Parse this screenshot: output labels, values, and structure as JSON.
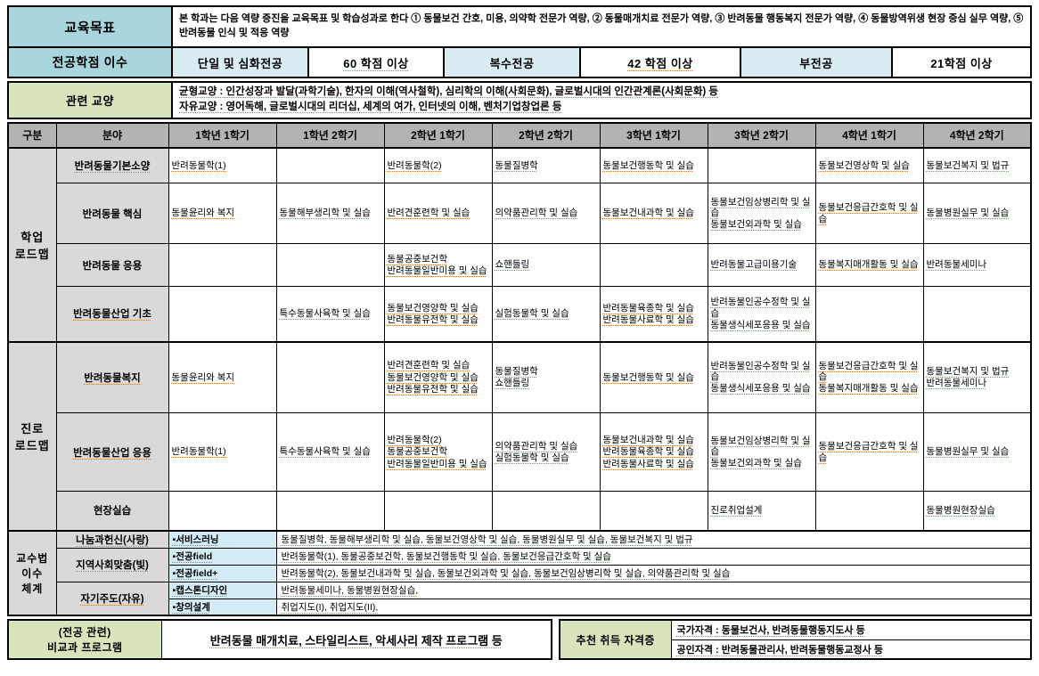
{
  "colors": {
    "header_teal": "#a9d6dc",
    "pale_blue": "#d8ecf2",
    "green": "#d8e4bc",
    "column_header_gray": "#b3b3b3",
    "label_gray": "#d9d9d9",
    "method_blue": "#d3ebf4",
    "spellcheck_squiggle": "#e8741f",
    "border": "#000000"
  },
  "top": {
    "goal_label": "교육목표",
    "goal_text": "본 학과는 다음 역량 증진을 교육목표 및 학습성과로 한다 ① 동물보건 간호, 미용, 의약학 전문가 역량, ② 동물매개치료 전문가 역량, ③ 반려동물 행동복지 전문가 역량, ④ 동물방역위생 현장 중심 실무 역량, ⑤ 반려동물 인식 및 적응 역량",
    "credits_label": "전공학점 이수",
    "credit_items": [
      {
        "label": "단일 및 심화전공",
        "value": "60 학점 이상"
      },
      {
        "label": "복수전공",
        "value": "42 학점 이상"
      },
      {
        "label": "부전공",
        "value": "21학점 이상"
      }
    ]
  },
  "liberal": {
    "label": "관련 교양",
    "line1": "균형교양 : 인간성장과 발달(과학기술), 한자의 이해(역사철학), 심리학의 이해(사회문화), 글로벌시대의 인간관계론(사회문화) 등",
    "line2": "자유교양 : 영어독해, 글로벌시대의 리더십, 세계의 여가, 인터넷의 이해, 벤처기업창업론 등"
  },
  "roadmap": {
    "headers": [
      "구분",
      "분야",
      "1학년 1학기",
      "1학년 2학기",
      "2학년 1학기",
      "2학년 2학기",
      "3학년 1학기",
      "3학년 2학기",
      "4학년 1학기",
      "4학년 2학기"
    ],
    "academic": {
      "label": "학업\n로드맵",
      "rows": [
        {
          "field": "반려동물기본소양",
          "cells": [
            [
              "반려동물학(1)"
            ],
            [],
            [
              "반려동물학(2)"
            ],
            [
              "동물질병학"
            ],
            [
              "동물보건행동학 및 실습"
            ],
            [],
            [
              "동물보건영상학 및 실습"
            ],
            [
              "동물보건복지 및 법규"
            ]
          ]
        },
        {
          "field": "반려동물 핵심",
          "cells": [
            [
              "동물윤리와 복지"
            ],
            [
              "동물해부생리학 및 실습"
            ],
            [
              "반려견훈련학 및 실습"
            ],
            [
              "의약품관리학 및 실습"
            ],
            [
              "동물보건내과학 및 실습"
            ],
            [
              "동물보건임상병리학 및 실습",
              "동물보건외과학 및 실습"
            ],
            [
              "동물보건응급간호학 및 실습"
            ],
            [
              "동물병원실무 및 실습"
            ]
          ]
        },
        {
          "field": "반려동물 응용",
          "cells": [
            [],
            [],
            [
              "동물공중보건학",
              "반려동물일반미용 및 실습"
            ],
            [
              "쇼핸들링"
            ],
            [],
            [
              "반려동물고급미용기술"
            ],
            [
              "동물복지매개활동 및 실습"
            ],
            [
              "반려동물세미나"
            ]
          ]
        },
        {
          "field": "반려동물산업 기초",
          "cells": [
            [],
            [
              "특수동물사육학 및 실습"
            ],
            [
              "동물보건영양학 및 실습",
              "반려동물유전학 및 실습"
            ],
            [
              "실험동물학 및 실습"
            ],
            [
              "반려동물육종학 및 실습",
              "반려동물사료학 및 실습"
            ],
            [
              "반려동물인공수정학 및 실습",
              "동물생식세포응용 및 실습"
            ],
            [],
            []
          ]
        }
      ]
    },
    "career": {
      "label": "진로\n로드맵",
      "rows": [
        {
          "field": "반려동물복지",
          "cells": [
            [
              "동물윤리와 복지"
            ],
            [],
            [
              "반려견훈련학 및 실습",
              "동물보건영양학 및 실습",
              "반려동물유전학 및 실습"
            ],
            [
              "동물질병학",
              "쇼핸들링"
            ],
            [
              "동물보건행동학 및 실습"
            ],
            [
              "반려동물인공수정학 및 실습",
              "동물생식세포응용 및 실습"
            ],
            [
              "동물보건응급간호학 및 실습",
              "동물복지매개활동 및 실습"
            ],
            [
              "동물보건복지 및 법규",
              "반려동물세미나"
            ]
          ]
        },
        {
          "field": "반려동물산업 응용",
          "cells": [
            [
              "반려동물학(1)"
            ],
            [
              "특수동물사육학 및 실습"
            ],
            [
              "반려동물학(2)",
              "동물공중보건학",
              "반려동물일반미용 및 실습"
            ],
            [
              "의약품관리학 및 실습",
              "실험동물학 및 실습"
            ],
            [
              "동물보건내과학 및 실습",
              "반려동물육종학 및 실습",
              "반려동물사료학 및 실습"
            ],
            [
              "동물보건임상병리학 및 실습",
              "동물보건외과학 및 실습"
            ],
            [
              "동물보건응급간호학 및 실습"
            ],
            [
              "동물병원실무 및 실습"
            ]
          ]
        },
        {
          "field": "현장실습",
          "cells": [
            [],
            [],
            [],
            [],
            [],
            [
              "진로취업설계"
            ],
            [],
            [
              "동물병원현장실습"
            ]
          ]
        }
      ]
    },
    "methods": {
      "label": "교수법\n이수\n체계",
      "groups": [
        {
          "group": "나눔과헌신(사랑)",
          "rows": [
            {
              "name": "▪서비스러닝",
              "courses": "동물질병학, 동물해부생리학 및 실습, 동물보건영상학 및 실습, 동물병원실무 및 실습, 동물보건복지 및 법규"
            }
          ]
        },
        {
          "group": "지역사회맞춤(빛)",
          "rows": [
            {
              "name": "▪전공field",
              "courses": "반려동물학(1), 동물공중보건학, 동물보건행동학 및 실습, 동물보건응급간호학 및 실습"
            },
            {
              "name": "▪전공field+",
              "courses": "반려동물학(2), 동물보건내과학 및 실습, 동물보건외과학 및 실습, 동물보건임상병리학 및 실습, 의약품관리학 및 실습"
            }
          ]
        },
        {
          "group": "자기주도(자유)",
          "rows": [
            {
              "name": "▪캡스톤디자인",
              "courses": "반려동물세미나, 동물병원현장실습,"
            },
            {
              "name": "▪창의설계",
              "courses": "취업지도(I), 취업지도(II),"
            }
          ]
        }
      ]
    }
  },
  "bottom": {
    "left_label": "(전공 관련)\n비교과 프로그램",
    "left_text": "반려동물 매개치료, 스타일리스트, 악세사리 제작 프로그램 등",
    "cert_label": "추천 취득 자격증",
    "cert_lines": [
      "국가자격 : 동물보건사, 반려동물행동지도사 등",
      "공인자격 : 반려동물관리사, 반려동물행동교정사 등"
    ]
  }
}
